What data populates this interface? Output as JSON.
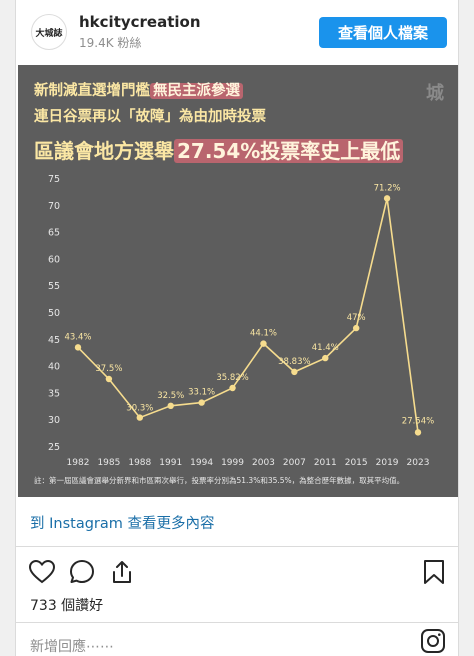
{
  "header": {
    "avatar_text": "大城誌",
    "username": "hkcitycreation",
    "followers": "19.4K 粉絲",
    "profile_button": "查看個人檔案"
  },
  "post": {
    "line1_prefix": "新制減直選增門檻",
    "line1_highlight": "無民主派參選",
    "line2": "連日谷票再以「故障」為由加時投票",
    "line3_prefix": "區議會地方選舉",
    "line3_highlight": "27.54%投票率史上最低",
    "watermark": "城",
    "footnote": "註：第一屆區議會選舉分新界和市區兩次舉行，投票率分別為51.3%和35.5%，為整合歷年數據，取其平均值。"
  },
  "chart_data": {
    "type": "line",
    "categories": [
      "1982",
      "1985",
      "1988",
      "1991",
      "1994",
      "1999",
      "2003",
      "2007",
      "2011",
      "2015",
      "2019",
      "2023"
    ],
    "values": [
      43.4,
      37.5,
      30.3,
      32.5,
      33.1,
      35.82,
      44.1,
      38.83,
      41.4,
      47,
      71.2,
      27.54
    ],
    "data_labels": [
      "43.4%",
      "37.5%",
      "30.3%",
      "32.5%",
      "33.1%",
      "35.82%",
      "44.1%",
      "38.83%",
      "41.4%",
      "47%",
      "71.2%",
      "27.54%"
    ],
    "yticks": [
      "25",
      "30",
      "35",
      "40",
      "45",
      "50",
      "55",
      "60",
      "65",
      "70",
      "75"
    ],
    "ylim": [
      25,
      75
    ],
    "line_color": "#f6dc8e",
    "grid": false
  },
  "footer": {
    "instagram_link": "到 Instagram 查看更多內容",
    "likes": "733 個讚好",
    "comment_placeholder": "新增回應⋯⋯"
  },
  "icons": [
    "heart-icon",
    "comment-icon",
    "share-icon",
    "bookmark-icon",
    "instagram-icon"
  ]
}
